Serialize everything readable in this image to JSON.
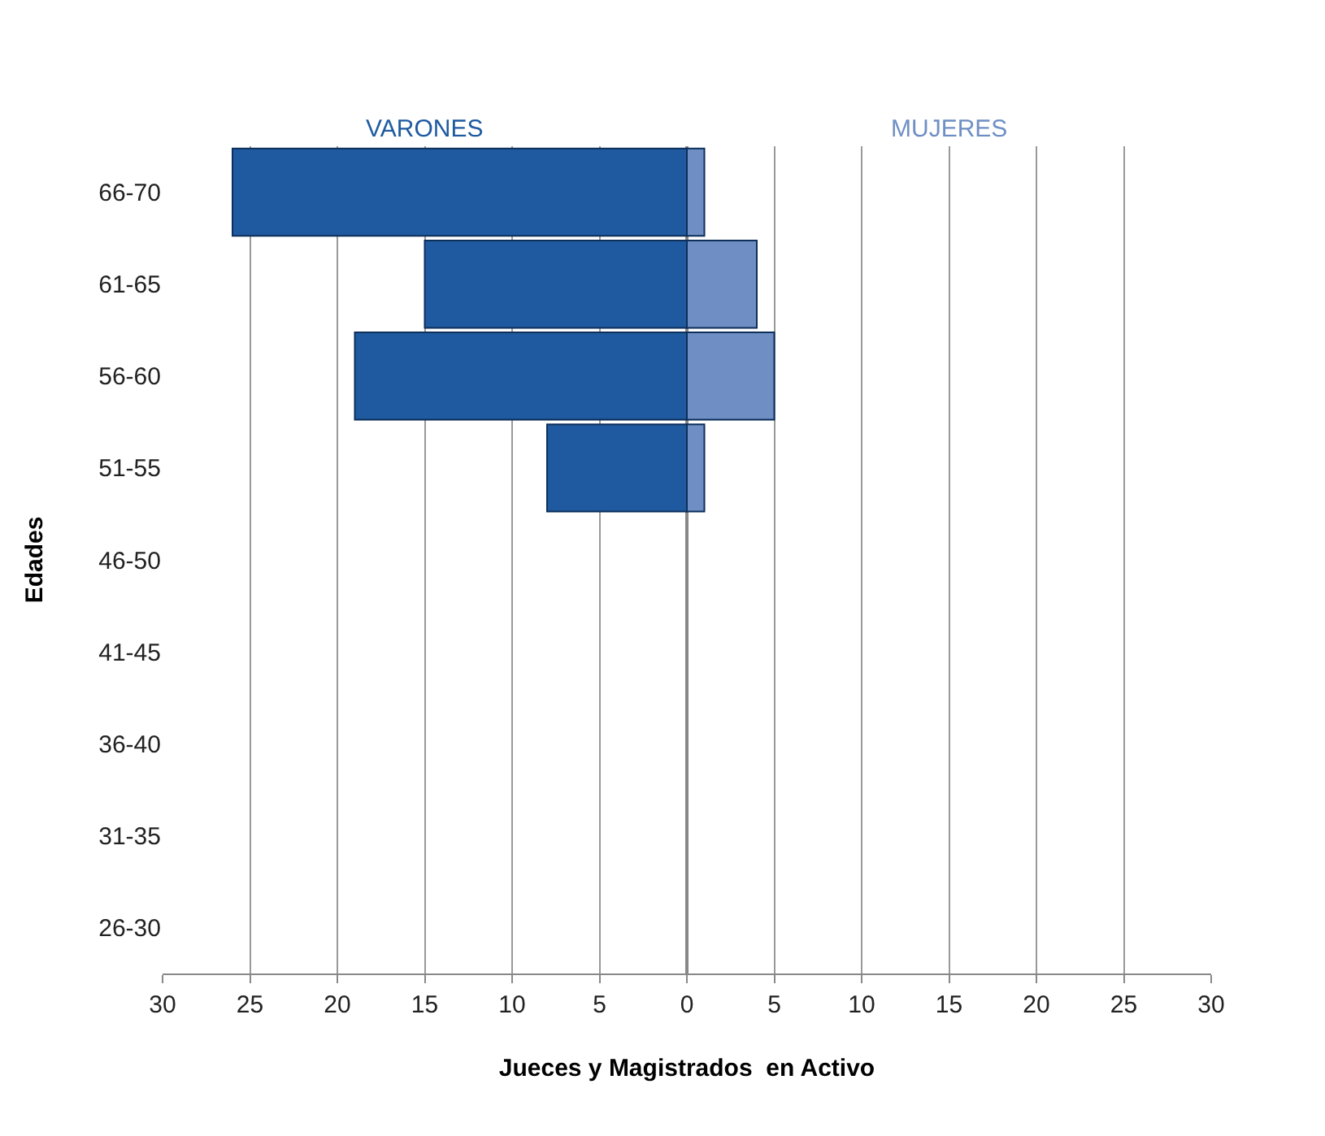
{
  "chart_data": {
    "type": "bar",
    "orientation": "horizontal",
    "stacked": true,
    "categories": [
      "66-70",
      "61-65",
      "56-60",
      "51-55",
      "46-50",
      "41-45",
      "36-40",
      "31-35",
      "26-30"
    ],
    "series": [
      {
        "name": "VARONES",
        "color": "#1f5aa0",
        "values": [
          -26,
          -15,
          -19,
          -8,
          null,
          null,
          null,
          null,
          null
        ]
      },
      {
        "name": "MUJERES",
        "color": "#6f8fc4",
        "values": [
          1,
          4,
          5,
          1,
          null,
          null,
          null,
          null,
          null
        ]
      }
    ],
    "xlim": [
      -30,
      30
    ],
    "xticks": [
      {
        "value": -30,
        "label": "30"
      },
      {
        "value": -25,
        "label": "25"
      },
      {
        "value": -20,
        "label": "20"
      },
      {
        "value": -15,
        "label": "15"
      },
      {
        "value": -10,
        "label": "10"
      },
      {
        "value": -5,
        "label": "5"
      },
      0,
      5,
      10,
      15,
      20,
      25,
      30
    ],
    "grid": "x",
    "ylabel": "Edades",
    "xlabel": "Jueces y Magistrados  en Activo"
  }
}
